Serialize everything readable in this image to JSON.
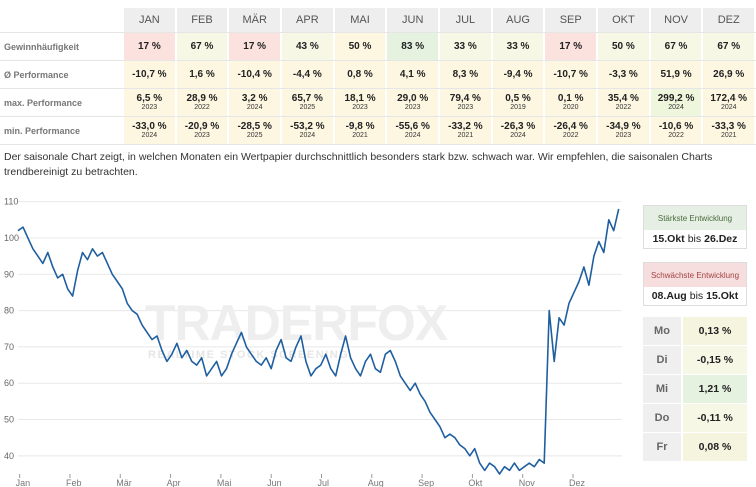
{
  "months": [
    "JAN",
    "FEB",
    "MÄR",
    "APR",
    "MAI",
    "JUN",
    "JUL",
    "AUG",
    "SEP",
    "OKT",
    "NOV",
    "DEZ"
  ],
  "rows": [
    {
      "label": "Gewinnhäufigkeit",
      "kind": "simple",
      "values": [
        "17 %",
        "67 %",
        "17 %",
        "43 %",
        "50 %",
        "83 %",
        "33 %",
        "33 %",
        "17 %",
        "50 %",
        "67 %",
        "67 %"
      ],
      "colors": [
        "red",
        "lgreen",
        "red",
        "lgreen",
        "yellow",
        "green",
        "lgreen",
        "lgreen",
        "red",
        "lgreen",
        "lgreen",
        "lgreen"
      ]
    },
    {
      "label": "Ø Performance",
      "kind": "simple",
      "values": [
        "-10,7 %",
        "1,6 %",
        "-10,4 %",
        "-4,4 %",
        "0,8 %",
        "4,1 %",
        "8,3 %",
        "-9,4 %",
        "-10,7 %",
        "-3,3 %",
        "51,9 %",
        "26,9 %"
      ],
      "colors": [
        "yellow",
        "yellow",
        "yellow",
        "yellow",
        "yellow",
        "yellow",
        "yellow",
        "yellow",
        "yellow",
        "yellow",
        "yellow",
        "yellow"
      ]
    },
    {
      "label": "max. Performance",
      "kind": "year",
      "values": [
        "6,5 %",
        "28,9 %",
        "3,2 %",
        "65,7 %",
        "18,1 %",
        "29,0 %",
        "79,4 %",
        "0,5 %",
        "0,1 %",
        "35,4 %",
        "299,2 %",
        "172,4 %"
      ],
      "years": [
        "2023",
        "2022",
        "2024",
        "2025",
        "2023",
        "2023",
        "2023",
        "2019",
        "2020",
        "2022",
        "2024",
        "2024"
      ],
      "colors": [
        "yellow",
        "yellow",
        "yellow",
        "yellow",
        "yellow",
        "yellow",
        "yellow",
        "yellow",
        "yellow",
        "yellow",
        "lime",
        "yellow"
      ]
    },
    {
      "label": "min. Performance",
      "kind": "year",
      "values": [
        "-33,0 %",
        "-20,9 %",
        "-28,5 %",
        "-53,2 %",
        "-9,8 %",
        "-55,6 %",
        "-33,2 %",
        "-26,3 %",
        "-26,4 %",
        "-34,9 %",
        "-10,6 %",
        "-33,3 %"
      ],
      "years": [
        "2024",
        "2023",
        "2025",
        "2024",
        "2021",
        "2024",
        "2021",
        "2024",
        "2022",
        "2023",
        "2022",
        "2021"
      ],
      "colors": [
        "yellow",
        "yellow",
        "yellow",
        "yellow",
        "yellow",
        "yellow",
        "yellow",
        "yellow",
        "yellow",
        "yellow",
        "yellow",
        "yellow"
      ]
    }
  ],
  "description": "Der saisonale Chart zeigt, in welchen Monaten ein Wertpapier durchschnittlich besonders stark bzw. schwach war. Wir empfehlen, die saisonalen Charts trendbereinigt zu betrachten.",
  "strongest": {
    "title": "Stärkste Entwicklung",
    "from": "15.Okt",
    "connector": "bis",
    "to": "26.Dez"
  },
  "weakest": {
    "title": "Schwächste Entwicklung",
    "from": "08.Aug",
    "connector": "bis",
    "to": "15.Okt"
  },
  "weekdays": [
    {
      "day": "Mo",
      "value": "0,13 %"
    },
    {
      "day": "Di",
      "value": "-0,15 %"
    },
    {
      "day": "Mi",
      "value": "1,21 %"
    },
    {
      "day": "Do",
      "value": "-0,11 %"
    },
    {
      "day": "Fr",
      "value": "0,08 %"
    }
  ],
  "watermark": {
    "brand": "TRADERFOX",
    "tagline": "REALTIME STOCK SCREENING"
  },
  "colors": {
    "line": "#1f5fa0",
    "red": "#fbe2df",
    "green": "#e4f2df"
  },
  "chart_data": {
    "type": "line",
    "xlabels": [
      "Jan",
      "Feb",
      "Mär",
      "Apr",
      "Mai",
      "Jun",
      "Jul",
      "Aug",
      "Sep",
      "Okt",
      "Nov",
      "Dez"
    ],
    "yticks": [
      40,
      50,
      60,
      70,
      80,
      90,
      100,
      110
    ],
    "ylim": [
      35,
      111
    ],
    "x": [
      0,
      3,
      6,
      9,
      12,
      15,
      18,
      21,
      24,
      27,
      30,
      33,
      36,
      39,
      42,
      45,
      48,
      51,
      54,
      57,
      60,
      63,
      66,
      69,
      72,
      75,
      78,
      81,
      84,
      87,
      90,
      93,
      96,
      99,
      102,
      105,
      108,
      111,
      114,
      117,
      120,
      123,
      126,
      129,
      132,
      135,
      138,
      141,
      144,
      147,
      150,
      153,
      156,
      159,
      162,
      165,
      168,
      171,
      174,
      177,
      180,
      183,
      186,
      189,
      192,
      195,
      198,
      201,
      204,
      207,
      210,
      213,
      216,
      219,
      222,
      225,
      228,
      231,
      234,
      237,
      240,
      243,
      246,
      249,
      252,
      255,
      258,
      261,
      264,
      267,
      270,
      273,
      276,
      279,
      282,
      285,
      288,
      291,
      294,
      297,
      300,
      303,
      306,
      309,
      312,
      315,
      318,
      321,
      324,
      327,
      330,
      333,
      336,
      339,
      342,
      345,
      348,
      351,
      354,
      357,
      360,
      363
    ],
    "values": [
      102,
      103,
      100,
      97,
      95,
      93,
      96,
      92,
      89,
      90,
      86,
      84,
      91,
      96,
      94,
      97,
      95,
      96,
      93,
      90,
      88,
      86,
      82,
      80,
      79,
      76,
      74,
      72,
      73,
      69,
      66,
      68,
      71,
      67,
      69,
      66,
      65,
      67,
      62,
      64,
      66,
      62,
      64,
      68,
      71,
      74,
      70,
      68,
      66,
      65,
      67,
      64,
      69,
      72,
      67,
      66,
      70,
      73,
      66,
      62,
      64,
      65,
      68,
      64,
      62,
      68,
      73,
      67,
      64,
      62,
      66,
      68,
      64,
      63,
      68,
      69,
      66,
      62,
      60,
      58,
      60,
      57,
      55,
      52,
      50,
      48,
      45,
      46,
      45,
      43,
      42,
      40,
      42,
      38,
      36,
      38,
      37,
      35,
      37,
      36,
      38,
      36,
      37,
      38,
      37,
      39,
      38,
      80,
      66,
      78,
      76,
      82,
      85,
      88,
      92,
      87,
      95,
      99,
      96,
      105,
      102,
      108
    ]
  }
}
